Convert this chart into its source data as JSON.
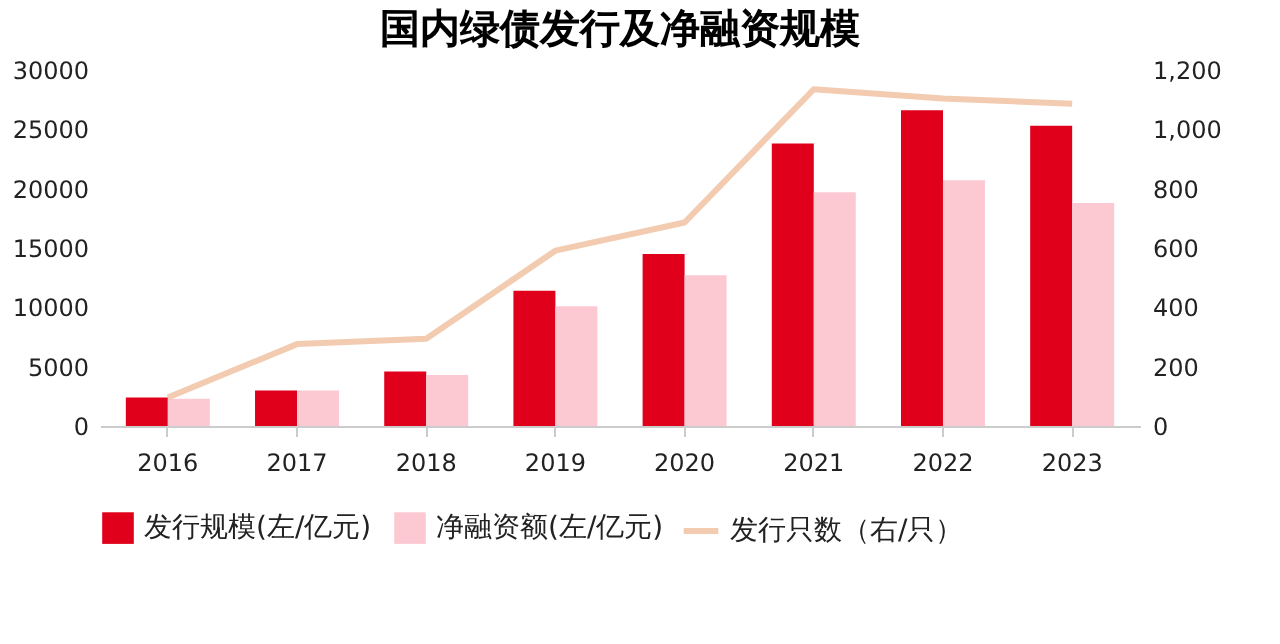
{
  "chart_data": {
    "type": "bar",
    "title": "国内绿债发行及净融资规模",
    "categories": [
      "2016",
      "2017",
      "2018",
      "2019",
      "2020",
      "2021",
      "2022",
      "2023"
    ],
    "series": [
      {
        "name": "发行规模(左/亿元)",
        "color": "#e0001b",
        "values": [
          2400,
          3000,
          4600,
          11400,
          14500,
          23800,
          26600,
          25300
        ]
      },
      {
        "name": "净融资额(左/亿元)",
        "color": "#fcc9d3",
        "values": [
          2300,
          3000,
          4300,
          10100,
          12700,
          19700,
          20700,
          18800
        ]
      },
      {
        "name": "发行只数（右/只）",
        "type": "line",
        "axis": "y2",
        "color": "#f2cbb0",
        "values": [
          96,
          276,
          294,
          591,
          686,
          1135,
          1104,
          1086
        ]
      }
    ],
    "ylim": [
      0,
      30000
    ],
    "yticks": [
      0,
      5000,
      10000,
      15000,
      20000,
      25000,
      30000
    ],
    "y2lim": [
      0,
      1200
    ],
    "y2ticks": [
      {
        "value": 0,
        "label": "0"
      },
      {
        "value": 200,
        "label": "200"
      },
      {
        "value": 400,
        "label": "400"
      },
      {
        "value": 600,
        "label": "600"
      },
      {
        "value": 800,
        "label": "800"
      },
      {
        "value": 1000,
        "label": "1,000"
      },
      {
        "value": 1200,
        "label": "1,200"
      }
    ],
    "grid": false,
    "legend": "bottom",
    "line_style": "solid",
    "marker": "none"
  }
}
